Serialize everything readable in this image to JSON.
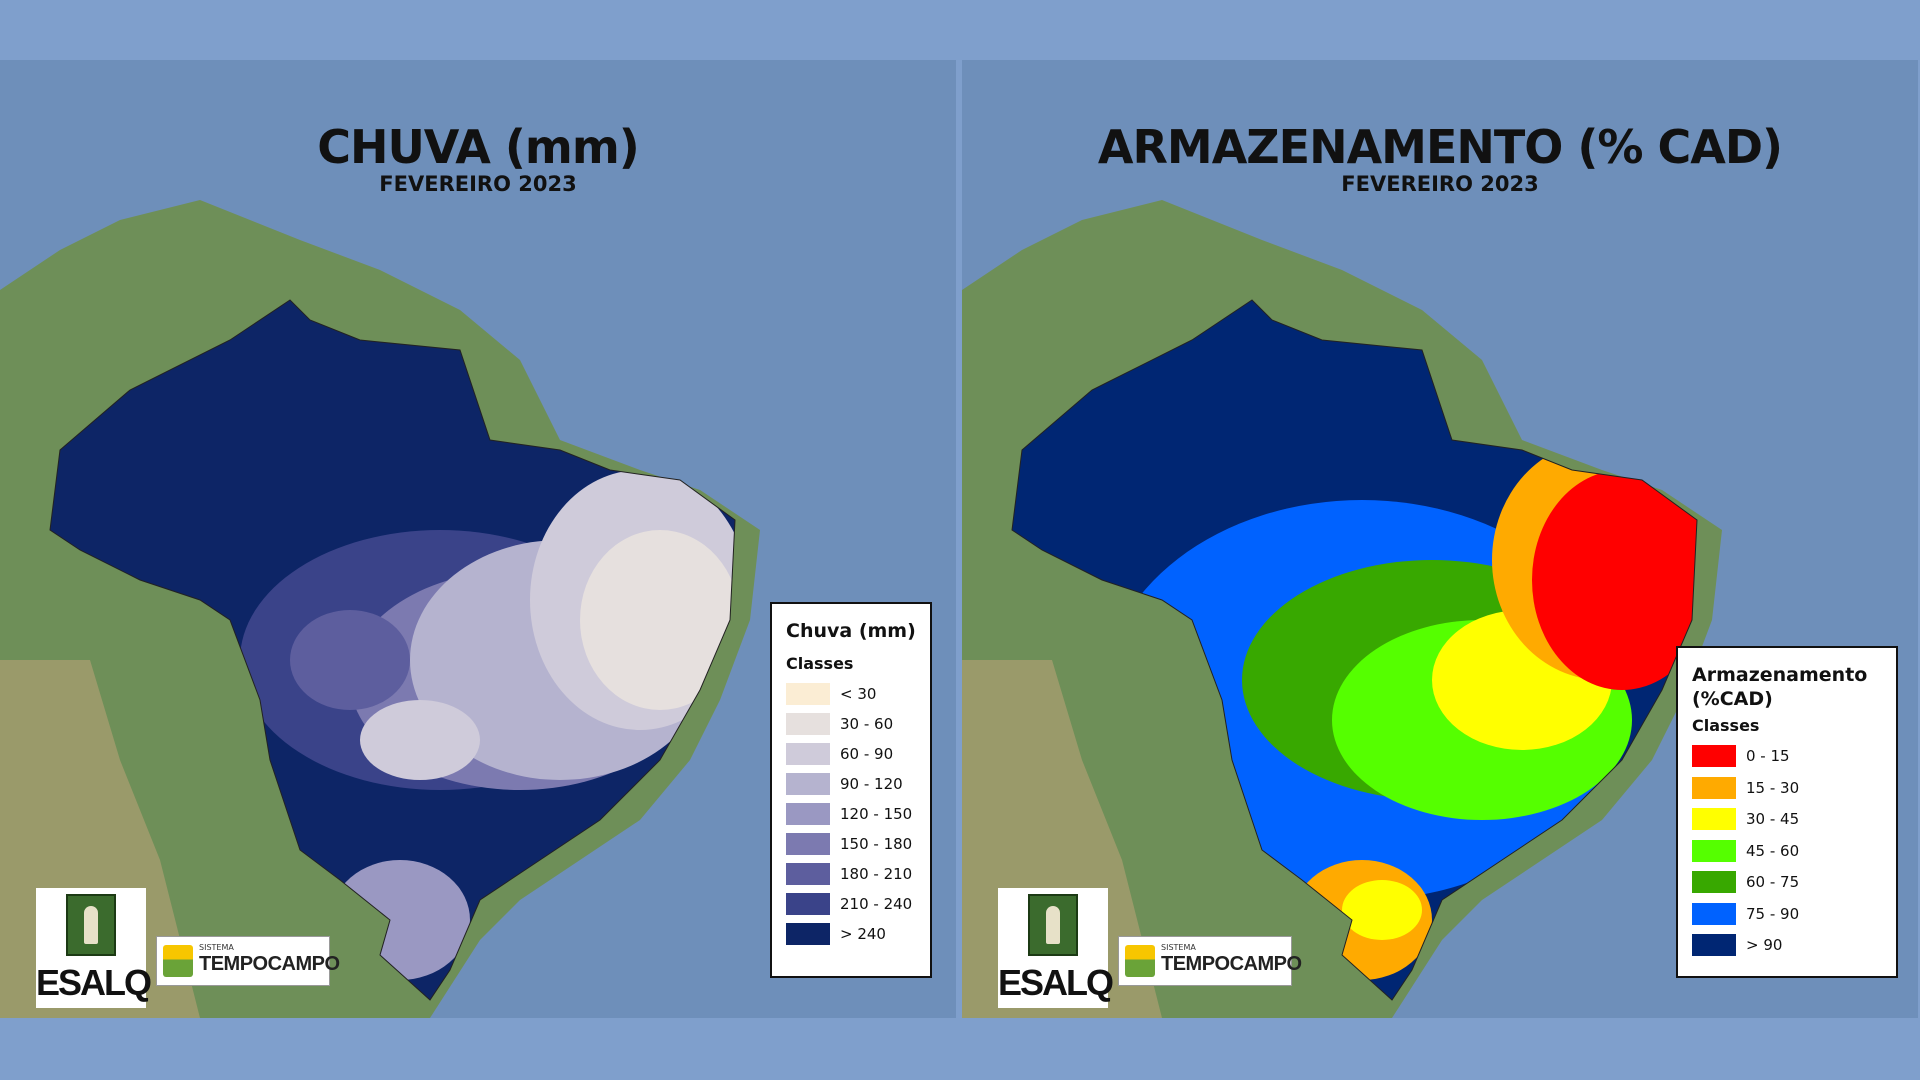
{
  "rain_map": {
    "title": "CHUVA (mm)",
    "subtitle": "FEVEREIRO 2023",
    "legend_title": "Chuva (mm)",
    "legend_subtitle": "Classes",
    "classes": [
      {
        "label": "< 30",
        "color": "#fbedd4"
      },
      {
        "label": "30 - 60",
        "color": "#e6e0de"
      },
      {
        "label": "60 - 90",
        "color": "#cfcbda"
      },
      {
        "label": "90 - 120",
        "color": "#b5b3cf"
      },
      {
        "label": "120 - 150",
        "color": "#9a98c2"
      },
      {
        "label": "150 - 180",
        "color": "#7c7ab0"
      },
      {
        "label": "180 - 210",
        "color": "#5d5e9e"
      },
      {
        "label": "210 - 240",
        "color": "#3a4389"
      },
      {
        "label": "> 240",
        "color": "#0d2566"
      }
    ]
  },
  "storage_map": {
    "title": "ARMAZENAMENTO (% CAD)",
    "subtitle": "FEVEREIRO 2023",
    "legend_title": "Armazenamento (%CAD)",
    "legend_subtitle": "Classes",
    "classes": [
      {
        "label": "0 - 15",
        "color": "#ff0000"
      },
      {
        "label": "15 - 30",
        "color": "#ffaa00"
      },
      {
        "label": "30 - 45",
        "color": "#ffff00"
      },
      {
        "label": "45 - 60",
        "color": "#55ff00"
      },
      {
        "label": "60 - 75",
        "color": "#38a800"
      },
      {
        "label": "75 - 90",
        "color": "#0062ff"
      },
      {
        "label": "> 90",
        "color": "#002673"
      }
    ]
  },
  "logos": {
    "esalq": "ESALQ",
    "tempocampo_small": "SISTEMA",
    "tempocampo": "TEMPOCAMPO"
  }
}
